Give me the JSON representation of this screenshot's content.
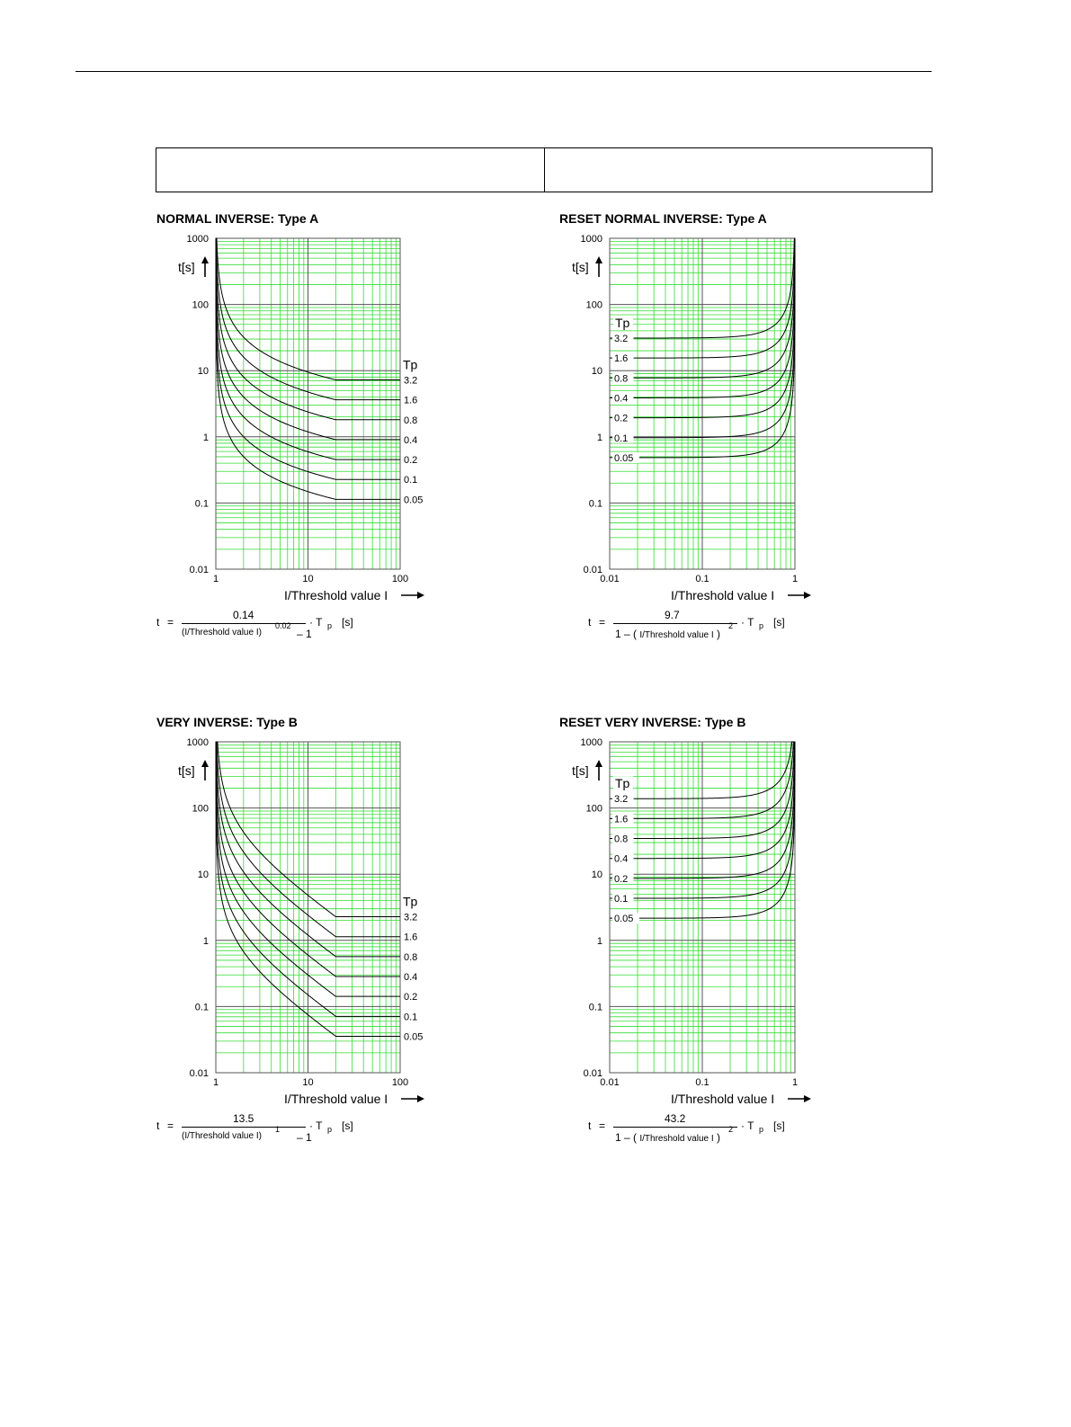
{
  "chart_data": [
    {
      "id": "na",
      "type": "line",
      "title": "NORMAL INVERSE: Type A",
      "ylabel": "t[s]",
      "xlabel": "I/Threshold value I",
      "xscale": "log",
      "yscale": "log",
      "xlim": [
        1,
        100
      ],
      "ylim": [
        0.01,
        1000
      ],
      "xticks": [
        "1",
        "10",
        "100"
      ],
      "yticks": [
        "0.01",
        "0.1",
        "1",
        "10",
        "100",
        "1000"
      ],
      "grid": true,
      "legend_title": "Tp",
      "legend_position": "right",
      "series": [
        {
          "name": "3.2",
          "tp": 3.2
        },
        {
          "name": "1.6",
          "tp": 1.6
        },
        {
          "name": "0.8",
          "tp": 0.8
        },
        {
          "name": "0.4",
          "tp": 0.4
        },
        {
          "name": "0.2",
          "tp": 0.2
        },
        {
          "name": "0.1",
          "tp": 0.1
        },
        {
          "name": "0.05",
          "tp": 0.05
        }
      ],
      "formula": {
        "lhs": "t",
        "eq": "=",
        "numerator": "0.14",
        "den_base": "(I/Threshold value I)",
        "den_exp": "0.02",
        "den_tail": "– 1",
        "factor": "· T",
        "factor_sub": "p",
        "unit": "[s]"
      }
    },
    {
      "id": "rna",
      "type": "line",
      "title": "RESET NORMAL INVERSE: Type A",
      "ylabel": "t[s]",
      "xlabel": "I/Threshold value I",
      "xscale": "log",
      "yscale": "log",
      "xlim": [
        0.01,
        1
      ],
      "ylim": [
        0.01,
        1000
      ],
      "xticks": [
        "0.01",
        "0.1",
        "1"
      ],
      "yticks": [
        "0.01",
        "0.1",
        "1",
        "10",
        "100",
        "1000"
      ],
      "grid": true,
      "legend_title": "Tp",
      "legend_position": "left",
      "series": [
        {
          "name": "3.2",
          "tp": 3.2
        },
        {
          "name": "1.6",
          "tp": 1.6
        },
        {
          "name": "0.8",
          "tp": 0.8
        },
        {
          "name": "0.4",
          "tp": 0.4
        },
        {
          "name": "0.2",
          "tp": 0.2
        },
        {
          "name": "0.1",
          "tp": 0.1
        },
        {
          "name": "0.05",
          "tp": 0.05
        }
      ],
      "formula": {
        "lhs": "t",
        "eq": "=",
        "numerator": "9.7",
        "den_base": "1 – ( I/Threshold value I )",
        "den_exp": "2",
        "den_tail": "",
        "factor": "· T",
        "factor_sub": "p",
        "unit": "[s]"
      }
    },
    {
      "id": "vi",
      "type": "line",
      "title": "VERY INVERSE: Type B",
      "ylabel": "t[s]",
      "xlabel": "I/Threshold value I",
      "xscale": "log",
      "yscale": "log",
      "xlim": [
        1,
        100
      ],
      "ylim": [
        0.01,
        1000
      ],
      "xticks": [
        "1",
        "10",
        "100"
      ],
      "yticks": [
        "0.01",
        "0.1",
        "1",
        "10",
        "100",
        "1000"
      ],
      "grid": true,
      "legend_title": "Tp",
      "legend_position": "right",
      "series": [
        {
          "name": "3.2",
          "tp": 3.2
        },
        {
          "name": "1.6",
          "tp": 1.6
        },
        {
          "name": "0.8",
          "tp": 0.8
        },
        {
          "name": "0.4",
          "tp": 0.4
        },
        {
          "name": "0.2",
          "tp": 0.2
        },
        {
          "name": "0.1",
          "tp": 0.1
        },
        {
          "name": "0.05",
          "tp": 0.05
        }
      ],
      "formula": {
        "lhs": "t",
        "eq": "=",
        "numerator": "13.5",
        "den_base": "(I/Threshold value I)",
        "den_exp": "1",
        "den_tail": "– 1",
        "factor": "· T",
        "factor_sub": "p",
        "unit": "[s]"
      }
    },
    {
      "id": "rvi",
      "type": "line",
      "title": "RESET VERY INVERSE: Type B",
      "ylabel": "t[s]",
      "xlabel": "I/Threshold value I",
      "xscale": "log",
      "yscale": "log",
      "xlim": [
        0.01,
        1
      ],
      "ylim": [
        0.01,
        1000
      ],
      "xticks": [
        "0.01",
        "0.1",
        "1"
      ],
      "yticks": [
        "0.01",
        "0.1",
        "1",
        "10",
        "100",
        "1000"
      ],
      "grid": true,
      "legend_title": "Tp",
      "legend_position": "left",
      "series": [
        {
          "name": "3.2",
          "tp": 3.2
        },
        {
          "name": "1.6",
          "tp": 1.6
        },
        {
          "name": "0.8",
          "tp": 0.8
        },
        {
          "name": "0.4",
          "tp": 0.4
        },
        {
          "name": "0.2",
          "tp": 0.2
        },
        {
          "name": "0.1",
          "tp": 0.1
        },
        {
          "name": "0.05",
          "tp": 0.05
        }
      ],
      "formula": {
        "lhs": "t",
        "eq": "=",
        "numerator": "43.2",
        "den_base": "1 – ( I/Threshold value I )",
        "den_exp": "2",
        "den_tail": "",
        "factor": "· T",
        "factor_sub": "p",
        "unit": "[s]"
      }
    }
  ],
  "colors": {
    "grid_minor": "#33dd33",
    "grid_major": "#555555",
    "curve": "#000000"
  }
}
